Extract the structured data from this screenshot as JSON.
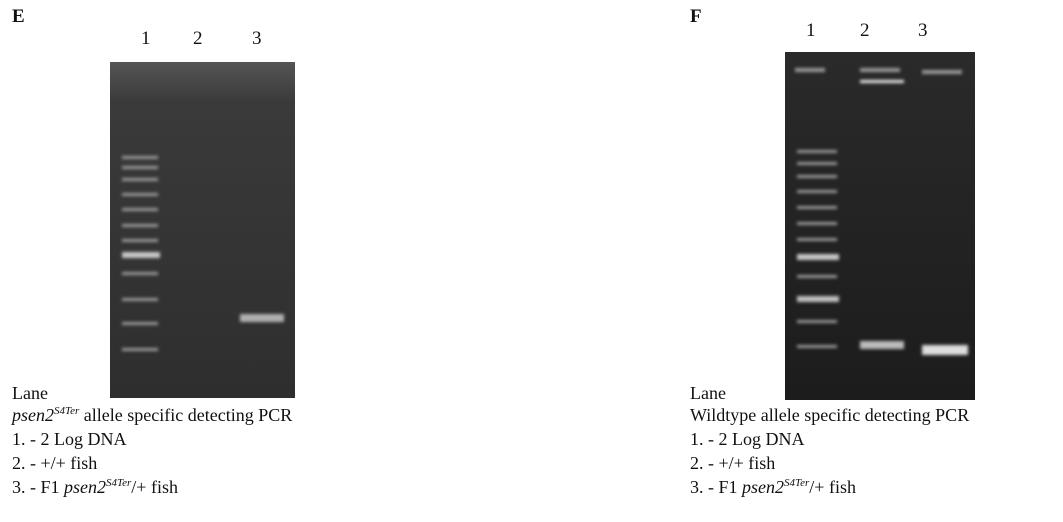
{
  "panels": [
    {
      "label": "E",
      "lanes": [
        "1",
        "2",
        "3"
      ],
      "lane_heading": "Lane",
      "title": {
        "gene": "psen2",
        "allele": "S4Ter",
        "rest": " allele specific detecting PCR"
      },
      "items": [
        "1. - 2 Log DNA",
        "2. - +/+ fish"
      ],
      "item3": {
        "prefix": "3. - F1 ",
        "gene": "psen2",
        "allele": "S4Ter",
        "suffix": "/+ fish"
      }
    },
    {
      "label": "F",
      "lanes": [
        "1",
        "2",
        "3"
      ],
      "lane_heading": "Lane",
      "title": {
        "text": "Wildtype allele specific detecting PCR"
      },
      "items": [
        "1. - 2 Log DNA",
        "2. - +/+ fish"
      ],
      "item3": {
        "prefix": "3. - F1 ",
        "gene": "psen2",
        "allele": "S4Ter",
        "suffix": "/+ fish"
      }
    }
  ]
}
